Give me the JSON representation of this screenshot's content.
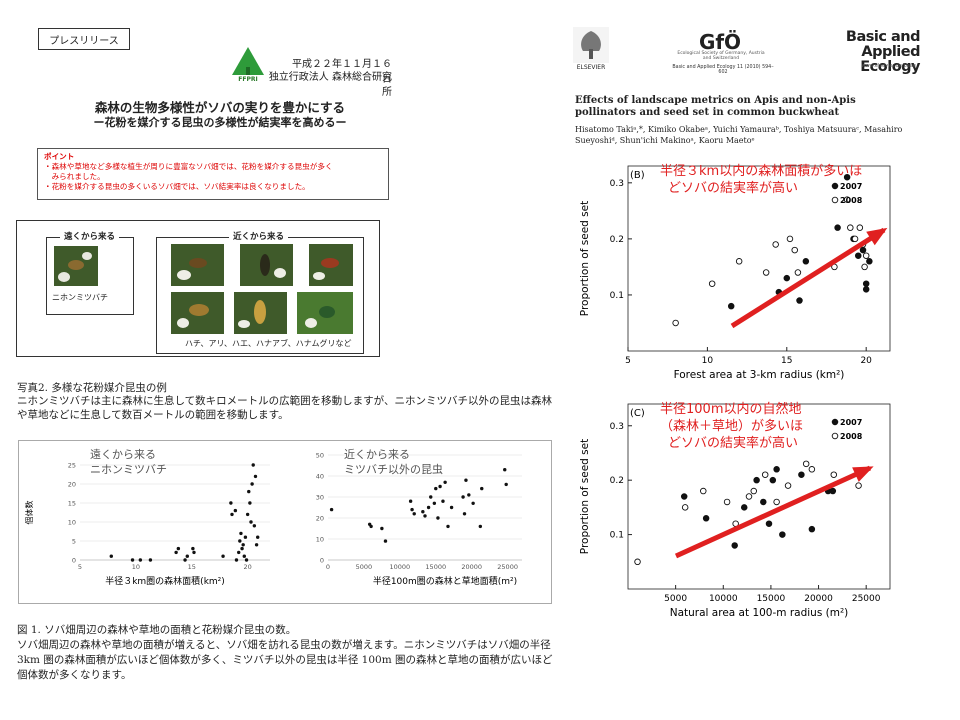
{
  "left": {
    "press_release": "プレスリリース",
    "logo_text": "FFPRI",
    "date": "平成２２年１１月１６日",
    "org": "独立行政法人 森林総合研究所",
    "title": "森林の生物多様性がソバの実りを豊かにする",
    "subtitle": "ー花粉を媒介する昆虫の多様性が結実率を高めるー",
    "point_head": "ポイント",
    "point_lines": [
      "・森林や草地など多様な植生が周りに豊富なソバ畑では、花粉を媒介する昆虫が多く",
      "　みられました。",
      "・花粉を媒介する昆虫の多くいるソバ畑では、ソバ結実率は良くなりました。"
    ],
    "far_label": "遠くから来る",
    "far_caption": "ニホンミツバチ",
    "near_label": "近くから来る",
    "near_caption": "ハチ、アリ、ハエ、ハナアブ、ハナムグリなど",
    "photo_caption": "写真2.  多様な花粉媒介昆虫の例",
    "photo_text": "ニホンミツバチは主に森林に生息して数キロメートルの広範囲を移動しますが、ニホンミツバチ以外の昆虫は森林や草地などに生息して数百メートルの範囲を移動します。",
    "fig_caption": "図 1. ソバ畑周辺の森林や草地の面積と花粉媒介昆虫の数。",
    "fig_text": "ソバ畑周辺の森林や草地の面積が増えると、ソバ畑を訪れる昆虫の数が増えます。ニホンミツバチはソバ畑の半径 3km 圏の森林面積が広いほど個体数が多く、ミツバチ以外の昆虫は半径 100m 圏の森林と草地の面積が広いほど個体数が多くなります。"
  },
  "right": {
    "elsevier": "ELSEVIER",
    "gfo": "GfÖ",
    "gfo_sub": "Ecological Society of Germany, Austria and Switzerland",
    "gfo_journal": "Basic and Applied Ecology 11 (2010) 594–602",
    "journal": "Basic and Applied Ecology",
    "journal_url": "www.elsevier.de/baae",
    "paper_title": "Effects of landscape metrics on Apis and non-Apis pollinators and seed set in common buckwheat",
    "authors": "Hisatomo Takiᵃ,*, Kimiko Okabeᵃ, Yuichi Yamauraᵇ, Toshiya Matsuuraᶜ, Masahiro Sueyoshiᵈ, Shun'ichi Makinoᵃ, Kaoru Maetoᵉ",
    "annot_b": [
      "半径３km以内の森林面積が多いほ",
      "どソバの結実率が高い"
    ],
    "annot_c": [
      "半径100m以内の自然地",
      "（森林＋草地）が多いほ",
      "どソバの結実率が高い"
    ]
  },
  "chart_data": [
    {
      "type": "scatter",
      "title": "遠くから来る ニホンミツバチ",
      "ylabel": "個体数",
      "xlabel": "半径３km圏の森林面積(km²)",
      "xlim": [
        5,
        22
      ],
      "ylim": [
        0,
        25
      ],
      "xticks": [
        5,
        10,
        15,
        20
      ],
      "yticks": [
        0,
        5,
        10,
        15,
        20,
        25
      ],
      "points": [
        [
          7.8,
          1
        ],
        [
          9.7,
          0
        ],
        [
          10.4,
          0
        ],
        [
          11.3,
          0
        ],
        [
          13.6,
          2
        ],
        [
          13.8,
          3
        ],
        [
          14.4,
          0
        ],
        [
          14.6,
          1
        ],
        [
          15.1,
          3
        ],
        [
          15.2,
          2
        ],
        [
          17.8,
          1
        ],
        [
          18.5,
          15
        ],
        [
          18.6,
          12
        ],
        [
          18.9,
          13
        ],
        [
          19.0,
          0
        ],
        [
          19.2,
          2
        ],
        [
          19.3,
          5
        ],
        [
          19.4,
          7
        ],
        [
          19.5,
          3
        ],
        [
          19.6,
          4
        ],
        [
          19.7,
          1
        ],
        [
          19.8,
          6
        ],
        [
          19.9,
          0
        ],
        [
          20.0,
          12
        ],
        [
          20.1,
          18
        ],
        [
          20.2,
          15
        ],
        [
          20.3,
          10
        ],
        [
          20.4,
          20
        ],
        [
          20.5,
          25
        ],
        [
          20.6,
          9
        ],
        [
          20.7,
          22
        ],
        [
          20.8,
          4
        ],
        [
          20.9,
          6
        ]
      ]
    },
    {
      "type": "scatter",
      "title": "近くから来る ミツバチ以外の昆虫",
      "ylabel": "",
      "xlabel": "半径100m圏の森林と草地面積(m²)",
      "xlim": [
        0,
        27000
      ],
      "ylim": [
        0,
        50
      ],
      "xticks": [
        0,
        5000,
        10000,
        15000,
        20000,
        25000
      ],
      "yticks": [
        0,
        10,
        20,
        30,
        40,
        50
      ],
      "points": [
        [
          500,
          24
        ],
        [
          5800,
          17
        ],
        [
          6000,
          16
        ],
        [
          7500,
          15
        ],
        [
          8000,
          9
        ],
        [
          11500,
          28
        ],
        [
          11700,
          24
        ],
        [
          12000,
          22
        ],
        [
          13200,
          23
        ],
        [
          13500,
          21
        ],
        [
          14000,
          25
        ],
        [
          14300,
          30
        ],
        [
          14800,
          27
        ],
        [
          15000,
          34
        ],
        [
          15300,
          20
        ],
        [
          15600,
          35
        ],
        [
          16000,
          28
        ],
        [
          16300,
          37
        ],
        [
          16700,
          16
        ],
        [
          17200,
          25
        ],
        [
          18800,
          30
        ],
        [
          19000,
          22
        ],
        [
          19200,
          38
        ],
        [
          19600,
          31
        ],
        [
          20200,
          27
        ],
        [
          21200,
          16
        ],
        [
          21400,
          34
        ],
        [
          24600,
          43
        ],
        [
          24800,
          36
        ]
      ]
    },
    {
      "type": "scatter",
      "title": "(B)",
      "ylabel": "Proportion of seed set",
      "xlabel": "Forest area at 3-km radius (km²)",
      "xlim": [
        5,
        21.5
      ],
      "ylim": [
        0,
        0.33
      ],
      "xticks": [
        5,
        10,
        15,
        20
      ],
      "yticks": [
        0.1,
        0.2,
        0.3
      ],
      "series": [
        {
          "name": "2007",
          "points": [
            [
              11.5,
              0.08
            ],
            [
              14.5,
              0.105
            ],
            [
              15.0,
              0.13
            ],
            [
              15.8,
              0.09
            ],
            [
              16.2,
              0.16
            ],
            [
              18.2,
              0.22
            ],
            [
              18.8,
              0.31
            ],
            [
              19.2,
              0.2
            ],
            [
              19.5,
              0.17
            ],
            [
              19.8,
              0.18
            ],
            [
              20.0,
              0.12
            ],
            [
              20.0,
              0.11
            ],
            [
              20.2,
              0.16
            ]
          ]
        },
        {
          "name": "2008",
          "points": [
            [
              8.0,
              0.05
            ],
            [
              10.3,
              0.12
            ],
            [
              12.0,
              0.16
            ],
            [
              13.7,
              0.14
            ],
            [
              14.3,
              0.19
            ],
            [
              15.2,
              0.2
            ],
            [
              15.5,
              0.18
            ],
            [
              15.7,
              0.14
            ],
            [
              18.0,
              0.15
            ],
            [
              18.8,
              0.27
            ],
            [
              19.0,
              0.22
            ],
            [
              19.3,
              0.2
            ],
            [
              19.6,
              0.22
            ],
            [
              19.8,
              0.19
            ],
            [
              20.0,
              0.17
            ],
            [
              19.9,
              0.15
            ]
          ]
        }
      ],
      "legend": "top-right"
    },
    {
      "type": "scatter",
      "title": "(C)",
      "ylabel": "Proportion of seed set",
      "xlabel": "Natural area at 100-m radius (m²)",
      "xlim": [
        0,
        27500
      ],
      "ylim": [
        0,
        0.34
      ],
      "xticks": [
        5000,
        10000,
        15000,
        20000,
        25000
      ],
      "yticks": [
        0.1,
        0.2,
        0.3
      ],
      "series": [
        {
          "name": "2007",
          "points": [
            [
              5900,
              0.17
            ],
            [
              8200,
              0.13
            ],
            [
              11200,
              0.08
            ],
            [
              12200,
              0.15
            ],
            [
              13500,
              0.2
            ],
            [
              14200,
              0.16
            ],
            [
              14800,
              0.12
            ],
            [
              15200,
              0.2
            ],
            [
              15600,
              0.22
            ],
            [
              16200,
              0.1
            ],
            [
              18200,
              0.21
            ],
            [
              19300,
              0.11
            ],
            [
              21000,
              0.18
            ],
            [
              21500,
              0.18
            ]
          ]
        },
        {
          "name": "2008",
          "points": [
            [
              1000,
              0.05
            ],
            [
              6000,
              0.15
            ],
            [
              7900,
              0.18
            ],
            [
              10400,
              0.16
            ],
            [
              11300,
              0.12
            ],
            [
              12700,
              0.17
            ],
            [
              13200,
              0.18
            ],
            [
              14400,
              0.21
            ],
            [
              15600,
              0.16
            ],
            [
              16800,
              0.19
            ],
            [
              18700,
              0.23
            ],
            [
              19300,
              0.22
            ],
            [
              21600,
              0.21
            ],
            [
              24200,
              0.19
            ]
          ]
        }
      ],
      "legend": "top-right"
    }
  ]
}
